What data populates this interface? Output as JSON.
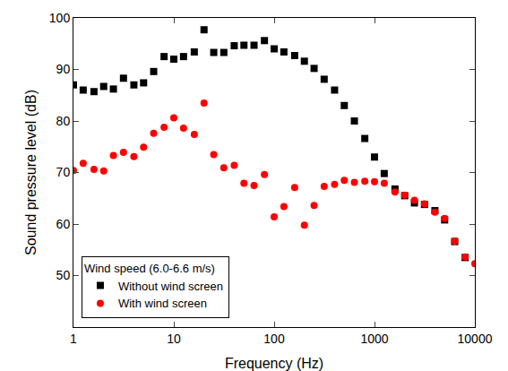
{
  "chart_data": {
    "type": "scatter",
    "x_label": "Frequency (Hz)",
    "y_label": "Sound pressure level (dB)",
    "log": "x",
    "grid": false,
    "legend": "lower left",
    "legend_title": "Wind speed (6.0-6.6 m/s)",
    "xlim": [
      1,
      10000
    ],
    "xticks": [
      1,
      10,
      100,
      1000,
      10000
    ],
    "ylim": [
      40,
      100
    ],
    "yticks": [
      50,
      60,
      70,
      80,
      90,
      100
    ],
    "x": [
      1,
      1.25,
      1.6,
      2,
      2.5,
      3.15,
      4,
      5,
      6.3,
      8,
      10,
      12.5,
      16,
      20,
      25,
      31.5,
      40,
      50,
      63,
      80,
      100,
      125,
      160,
      200,
      250,
      315,
      400,
      500,
      630,
      800,
      1000,
      1250,
      1600,
      2000,
      2500,
      3150,
      4000,
      5000,
      6300,
      8000,
      10000
    ],
    "series": [
      {
        "name": "Without wind screen",
        "color": "#000000",
        "marker": "square",
        "values": [
          87,
          86,
          85.7,
          86.7,
          86.2,
          88.3,
          87,
          87.4,
          89.6,
          92.5,
          92,
          92.5,
          93.4,
          97.7,
          93.3,
          93.3,
          94.6,
          94.7,
          94.7,
          95.6,
          94,
          93.4,
          92.7,
          91.6,
          90.2,
          88.1,
          86,
          83,
          80,
          76.6,
          73,
          69.8,
          66.8,
          65.5,
          64.1,
          63.8,
          62.6,
          60.8,
          56.6,
          53.5,
          null
        ]
      },
      {
        "name": "With wind screen",
        "color": "#ff0000",
        "marker": "circle",
        "values": [
          70.4,
          71.8,
          70.6,
          70.3,
          73.3,
          73.9,
          73.1,
          74.9,
          77.6,
          78.8,
          80.6,
          78.6,
          77.4,
          83.5,
          73.5,
          70.9,
          71.4,
          67.9,
          67.5,
          69.6,
          61.4,
          63.4,
          67.1,
          59.8,
          63.6,
          67.3,
          67.7,
          68.5,
          68.1,
          68.3,
          68.2,
          67.9,
          66.2,
          65.6,
          64.6,
          63.9,
          62.3,
          61.1,
          56.7,
          53.6,
          52.3
        ]
      }
    ]
  }
}
